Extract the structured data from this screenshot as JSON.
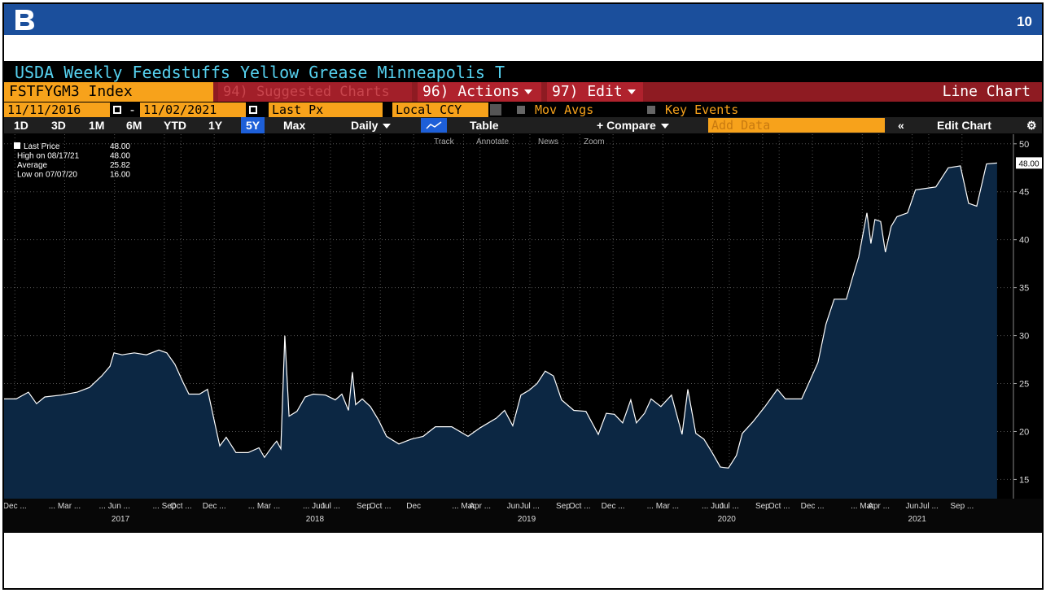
{
  "header": {
    "page_number": "10"
  },
  "terminal": {
    "title": "USDA Weekly Feedstuffs Yellow Grease Minneapolis T",
    "ticker": "FSTFYGM3 Index",
    "menu": [
      "94) Suggested Charts",
      "96) Actions",
      "97) Edit"
    ],
    "chart_type": "Line Chart",
    "start_date": "11/11/2016",
    "end_date": "11/02/2021",
    "date_separator": "-",
    "field": "Last Px",
    "currency": "Local CCY",
    "options": [
      "Mov Avgs",
      "Key Events"
    ],
    "periods": [
      "1D",
      "3D",
      "1M",
      "6M",
      "YTD",
      "1Y",
      "5Y",
      "Max"
    ],
    "selected_period": "5Y",
    "frequency": "Daily",
    "table": "Table",
    "compare": "+ Compare",
    "add_data": "Add Data",
    "edit_chart": "Edit Chart",
    "tools": [
      "Track",
      "Annotate",
      "News",
      "Zoom"
    ]
  },
  "chart_data": {
    "type": "line",
    "series": [
      {
        "name": "Last Price",
        "color": "#ffffff",
        "fill": "#0c2743",
        "last_label": "48.00",
        "values": [
          23.4,
          23.4,
          24.1,
          22.9,
          23.6,
          23.8,
          24.1,
          24.6,
          25.8,
          26.8,
          28.2,
          28.0,
          28.2,
          28.0,
          28.5,
          28.2,
          27.0,
          25.1,
          23.9,
          23.9,
          24.4,
          21.6,
          18.5,
          19.4,
          17.8,
          17.8,
          18.3,
          17.3,
          18.5,
          19.0,
          18.2,
          30.0,
          21.6,
          22.1,
          23.6,
          23.9,
          23.8,
          23.3,
          23.9,
          22.2,
          26.2,
          22.8,
          23.4,
          22.6,
          21.2,
          19.5,
          18.7,
          19.2,
          19.5,
          20.5,
          20.5,
          19.5,
          20.4,
          21.4,
          22.2,
          20.6,
          23.8,
          24.3,
          25.0,
          26.3,
          25.8,
          23.3,
          22.2,
          22.1,
          19.7,
          21.9,
          21.8,
          20.9,
          23.3,
          20.9,
          21.9,
          23.4,
          22.6,
          23.8,
          19.7,
          24.4,
          19.8,
          19.2,
          17.8,
          16.3,
          16.2,
          17.5,
          19.8,
          21.0,
          22.6,
          24.4,
          23.4,
          23.4,
          25.3,
          27.2,
          31.2,
          33.8,
          33.8,
          36.2,
          38.2,
          42.8,
          39.6,
          42.1,
          41.9,
          38.7,
          41.4,
          42.4,
          42.8,
          45.2,
          45.5,
          47.5,
          47.7,
          43.8,
          43.5,
          45.3,
          47.9,
          48.0
        ]
      }
    ],
    "x": [
      2016.863,
      2016.924,
      2016.985,
      2017.026,
      2017.067,
      2017.149,
      2017.23,
      2017.292,
      2017.353,
      2017.394,
      2017.414,
      2017.455,
      2017.516,
      2017.577,
      2017.639,
      2017.679,
      2017.72,
      2017.761,
      2017.79,
      2017.843,
      2017.883,
      2017.912,
      2017.945,
      2017.977,
      2018.026,
      2018.087,
      2018.141,
      2018.169,
      2018.21,
      2018.23,
      2018.251,
      2018.271,
      2018.292,
      2018.332,
      2018.373,
      2018.414,
      2018.475,
      2018.524,
      2018.557,
      2018.59,
      2018.61,
      2018.626,
      2018.659,
      2018.7,
      2018.741,
      2018.781,
      2018.843,
      2018.904,
      2018.965,
      2019.026,
      2019.108,
      2019.19,
      2019.251,
      2019.332,
      2019.373,
      2019.414,
      2019.455,
      2019.496,
      2019.536,
      2019.577,
      2019.618,
      2019.659,
      2019.72,
      2019.781,
      2019.843,
      2019.883,
      2019.924,
      2019.965,
      2020.006,
      2020.034,
      2020.075,
      2020.108,
      2020.157,
      2020.21,
      2020.263,
      2020.292,
      2020.332,
      2020.373,
      2020.414,
      2020.455,
      2020.496,
      2020.536,
      2020.565,
      2020.618,
      2020.679,
      2020.741,
      2020.781,
      2020.863,
      2020.904,
      2020.945,
      2020.985,
      2021.026,
      2021.087,
      2021.12,
      2021.149,
      2021.19,
      2021.21,
      2021.23,
      2021.259,
      2021.283,
      2021.312,
      2021.341,
      2021.394,
      2021.434,
      2021.536,
      2021.598,
      2021.659,
      2021.7,
      2021.741,
      2021.761,
      2021.79,
      2021.843
    ],
    "xlim": [
      2016.863,
      2021.925
    ],
    "xticks": [
      {
        "value": 2016.917,
        "label": "Dec ..."
      },
      {
        "value": 2017.167,
        "label": "... Mar ..."
      },
      {
        "value": 2017.417,
        "label": "... Jun ..."
      },
      {
        "value": 2017.667,
        "label": "... Sep"
      },
      {
        "value": 2017.75,
        "label": "Oct ..."
      },
      {
        "value": 2017.917,
        "label": "Dec ..."
      },
      {
        "value": 2018.167,
        "label": "... Mar ..."
      },
      {
        "value": 2018.417,
        "label": "... Jun"
      },
      {
        "value": 2018.5,
        "label": "Jul ..."
      },
      {
        "value": 2018.667,
        "label": "Sep"
      },
      {
        "value": 2018.75,
        "label": "Oct ..."
      },
      {
        "value": 2018.917,
        "label": "Dec"
      },
      {
        "value": 2019.167,
        "label": "... Mar"
      },
      {
        "value": 2019.25,
        "label": "Apr ..."
      },
      {
        "value": 2019.417,
        "label": "Jun"
      },
      {
        "value": 2019.5,
        "label": "Jul ..."
      },
      {
        "value": 2019.667,
        "label": "Sep"
      },
      {
        "value": 2019.75,
        "label": "Oct ..."
      },
      {
        "value": 2019.917,
        "label": "Dec ..."
      },
      {
        "value": 2020.167,
        "label": "... Mar ..."
      },
      {
        "value": 2020.417,
        "label": "... Jun"
      },
      {
        "value": 2020.5,
        "label": "Jul ..."
      },
      {
        "value": 2020.667,
        "label": "Sep"
      },
      {
        "value": 2020.75,
        "label": "Oct ..."
      },
      {
        "value": 2020.917,
        "label": "Dec ..."
      },
      {
        "value": 2021.167,
        "label": "... Mar"
      },
      {
        "value": 2021.25,
        "label": "Apr ..."
      },
      {
        "value": 2021.417,
        "label": "Jun"
      },
      {
        "value": 2021.5,
        "label": "Jul ..."
      },
      {
        "value": 2021.667,
        "label": "Sep ..."
      }
    ],
    "year_ticks": [
      {
        "value": 2017.447,
        "label": "2017"
      },
      {
        "value": 2018.422,
        "label": "2018"
      },
      {
        "value": 2019.484,
        "label": "2019"
      },
      {
        "value": 2020.487,
        "label": "2020"
      },
      {
        "value": 2021.442,
        "label": "2021"
      }
    ],
    "ylim": [
      13,
      51
    ],
    "yticks": [
      15,
      20,
      25,
      30,
      35,
      40,
      45,
      50
    ],
    "grid": true,
    "stats": [
      {
        "label": "Last Price",
        "value": "48.00"
      },
      {
        "label": "High on 08/17/21",
        "value": "48.00"
      },
      {
        "label": "Average",
        "value": "25.82"
      },
      {
        "label": "Low on 07/07/20",
        "value": "16.00"
      }
    ]
  }
}
